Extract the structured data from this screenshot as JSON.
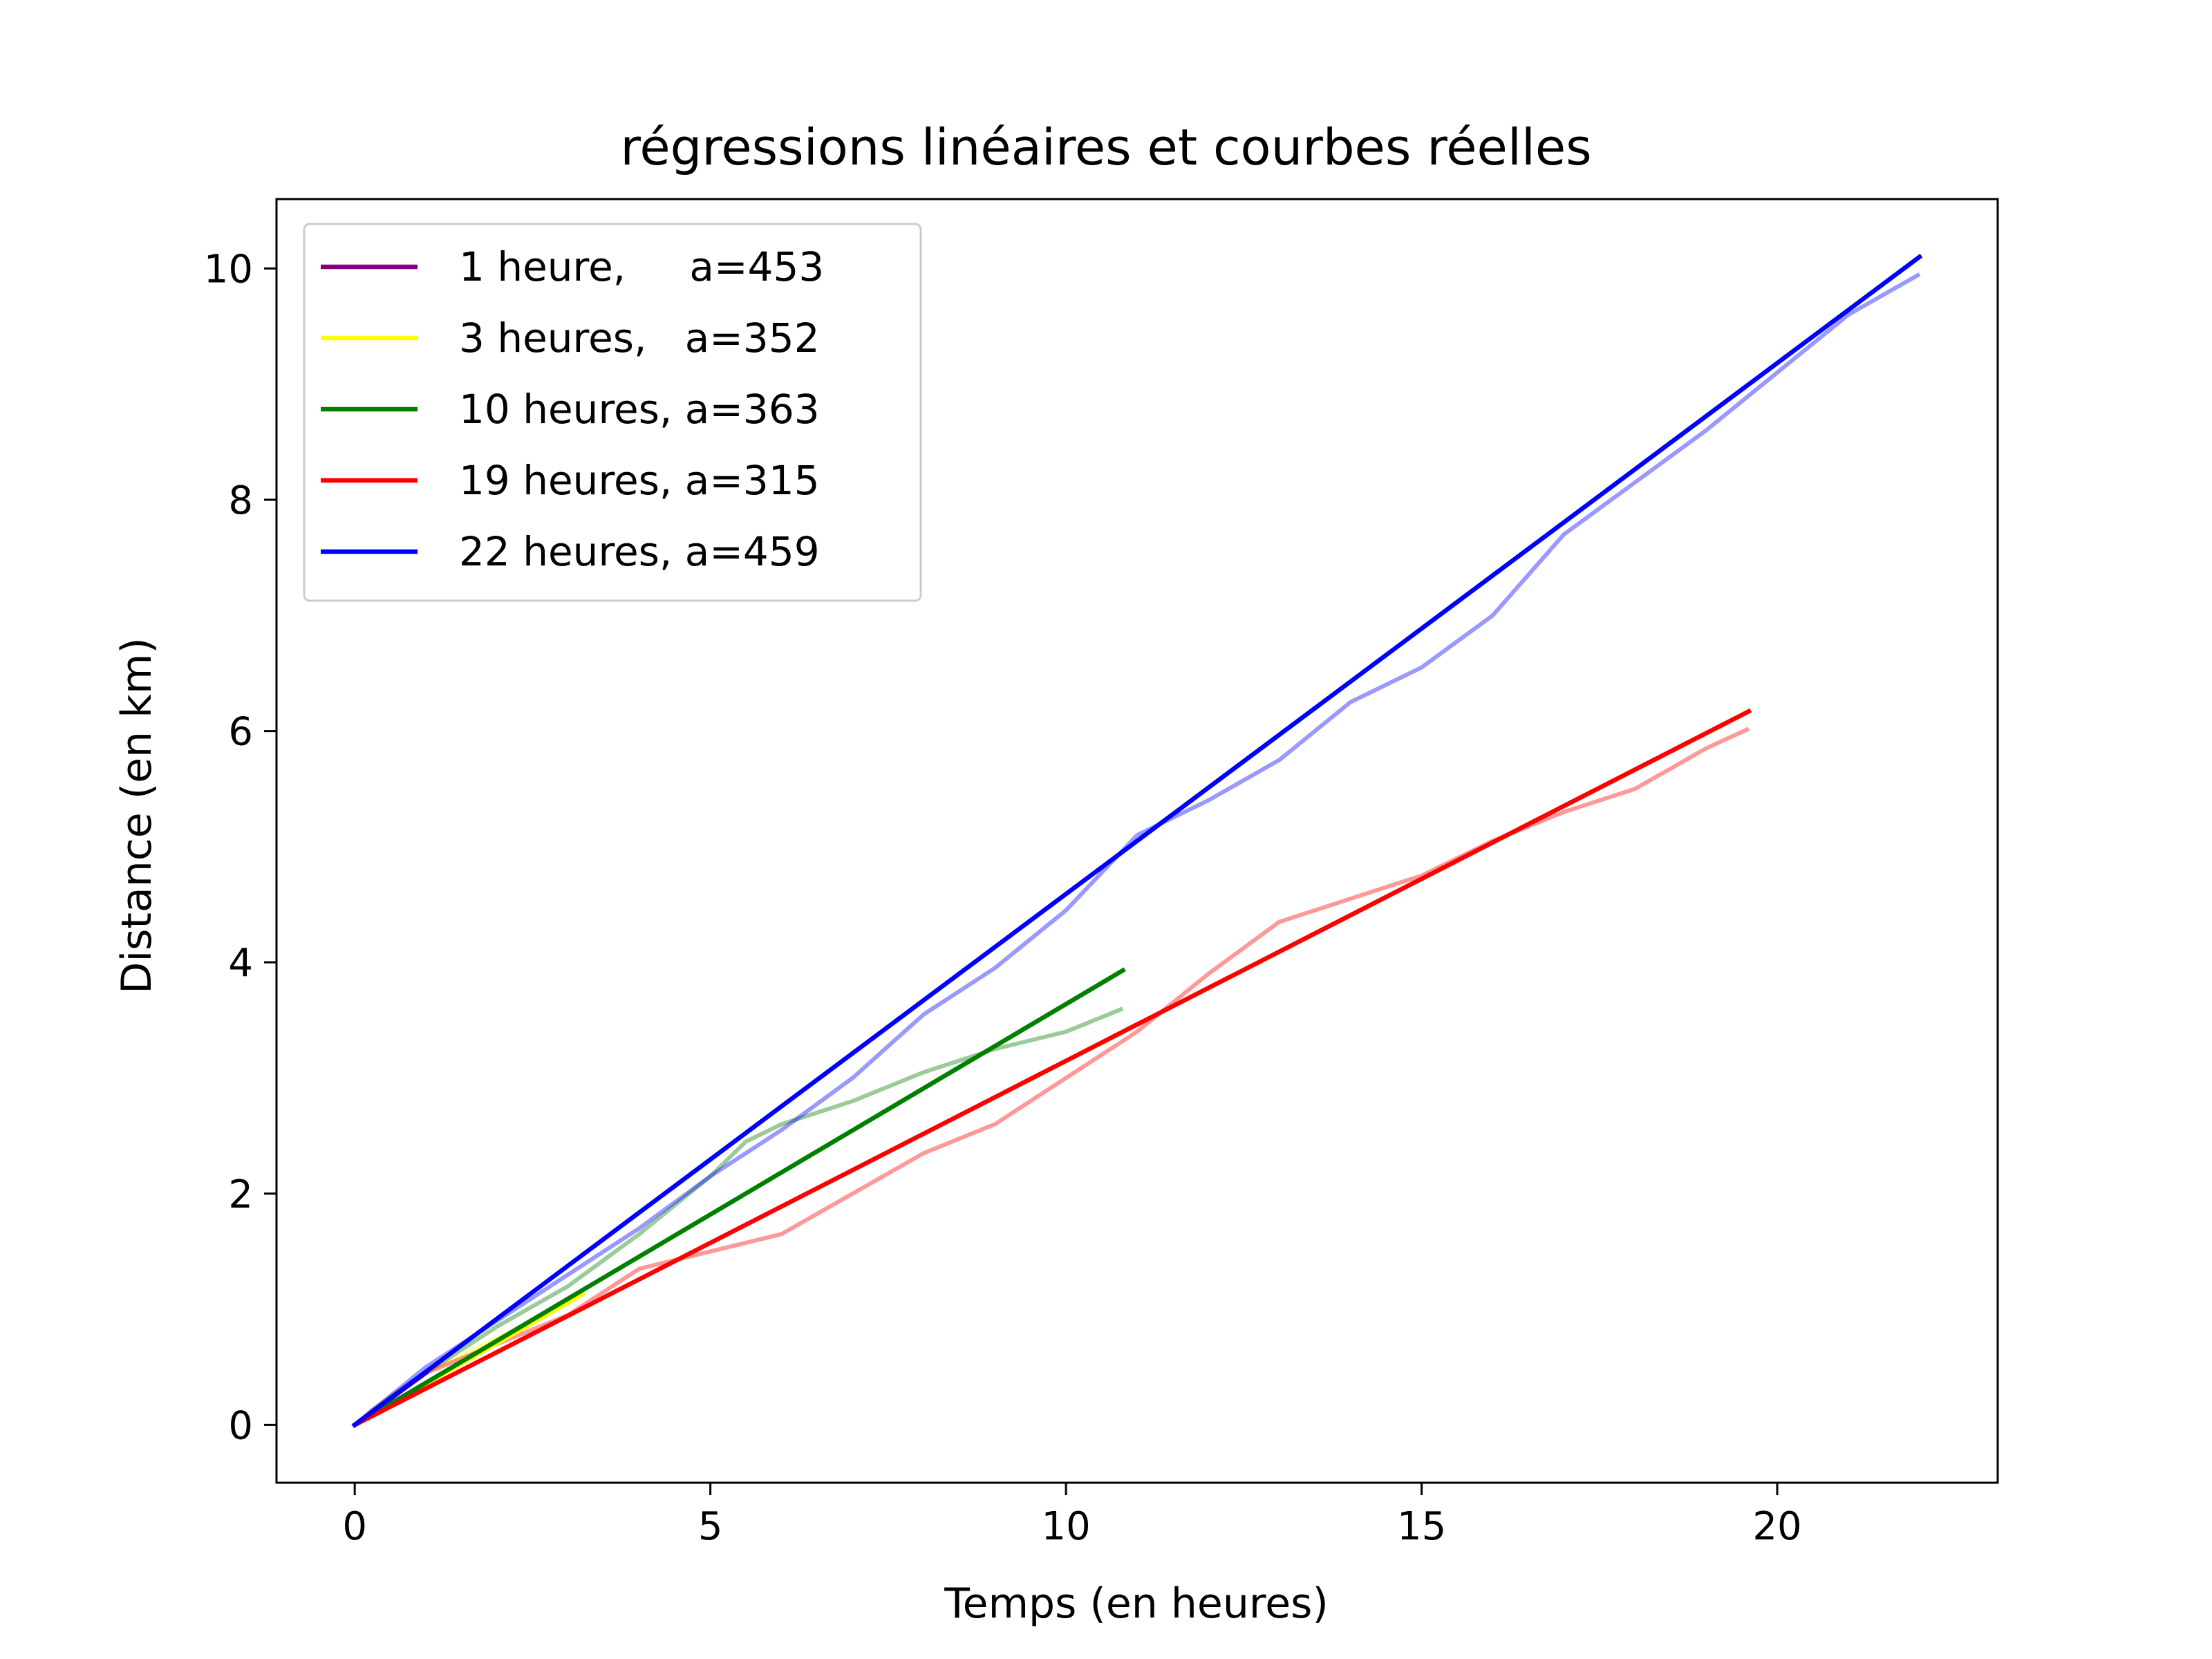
{
  "chart_data": {
    "type": "line",
    "title": "régressions linéaires et courbes réelles",
    "xlabel": "Temps (en heures)",
    "ylabel": "Distance (en km)",
    "xlim": [
      -1.1,
      23.1
    ],
    "ylim": [
      -0.5,
      10.6
    ],
    "xticks": [
      0,
      5,
      10,
      15,
      20
    ],
    "yticks": [
      0,
      2,
      4,
      6,
      8,
      10
    ],
    "grid": false,
    "legend_position": "top-left",
    "series": [
      {
        "name": "1 heure,     a=453",
        "color": "#800080",
        "regression": {
          "x": [
            0,
            1
          ],
          "y": [
            0,
            0.45
          ]
        },
        "real": {
          "x": [
            0,
            0.25,
            0.5,
            0.75,
            1.0
          ],
          "y": [
            0,
            0.13,
            0.24,
            0.35,
            0.46
          ]
        }
      },
      {
        "name": "3 heures,   a=352",
        "color": "#ffff00",
        "regression": {
          "x": [
            0,
            3.2
          ],
          "y": [
            0,
            1.13
          ]
        },
        "real": {
          "x": [
            0,
            0.5,
            1.0,
            1.5,
            2.0,
            2.5,
            3.0,
            3.2
          ],
          "y": [
            0,
            0.25,
            0.45,
            0.6,
            0.75,
            0.9,
            1.05,
            1.13
          ]
        }
      },
      {
        "name": "10 heures, a=363",
        "color": "#008000",
        "regression": {
          "x": [
            0,
            10.8
          ],
          "y": [
            0,
            3.93
          ]
        },
        "real": {
          "x": [
            0,
            1,
            2,
            3,
            4,
            4.5,
            5,
            5.5,
            6,
            7,
            8,
            9,
            10,
            10.8
          ],
          "y": [
            0,
            0.45,
            0.85,
            1.2,
            1.65,
            1.9,
            2.15,
            2.45,
            2.6,
            2.8,
            3.05,
            3.25,
            3.4,
            3.6
          ]
        }
      },
      {
        "name": "19 heures, a=315",
        "color": "#ff0000",
        "regression": {
          "x": [
            0,
            19.6
          ],
          "y": [
            0,
            6.17
          ]
        },
        "real": {
          "x": [
            0,
            1,
            2,
            3,
            4,
            5,
            6,
            7,
            8,
            9,
            10,
            11,
            12,
            13,
            14,
            15,
            16,
            17,
            18,
            19,
            19.6
          ],
          "y": [
            0,
            0.45,
            0.7,
            0.95,
            1.35,
            1.5,
            1.65,
            2.0,
            2.35,
            2.6,
            3.0,
            3.4,
            3.9,
            4.35,
            4.55,
            4.75,
            5.05,
            5.3,
            5.5,
            5.85,
            6.02
          ]
        }
      },
      {
        "name": "22 heures, a=459",
        "color": "#0000ff",
        "regression": {
          "x": [
            0,
            22
          ],
          "y": [
            0,
            10.1
          ]
        },
        "real": {
          "x": [
            0,
            1,
            2,
            3,
            4,
            5,
            6,
            7,
            8,
            9,
            10,
            11,
            12,
            13,
            14,
            15,
            16,
            17,
            18,
            19,
            20,
            21,
            22
          ],
          "y": [
            0,
            0.5,
            0.9,
            1.3,
            1.7,
            2.15,
            2.55,
            3.0,
            3.55,
            3.95,
            4.45,
            5.1,
            5.4,
            5.75,
            6.25,
            6.55,
            7.0,
            7.7,
            8.15,
            8.6,
            9.1,
            9.6,
            9.95
          ]
        }
      }
    ]
  }
}
